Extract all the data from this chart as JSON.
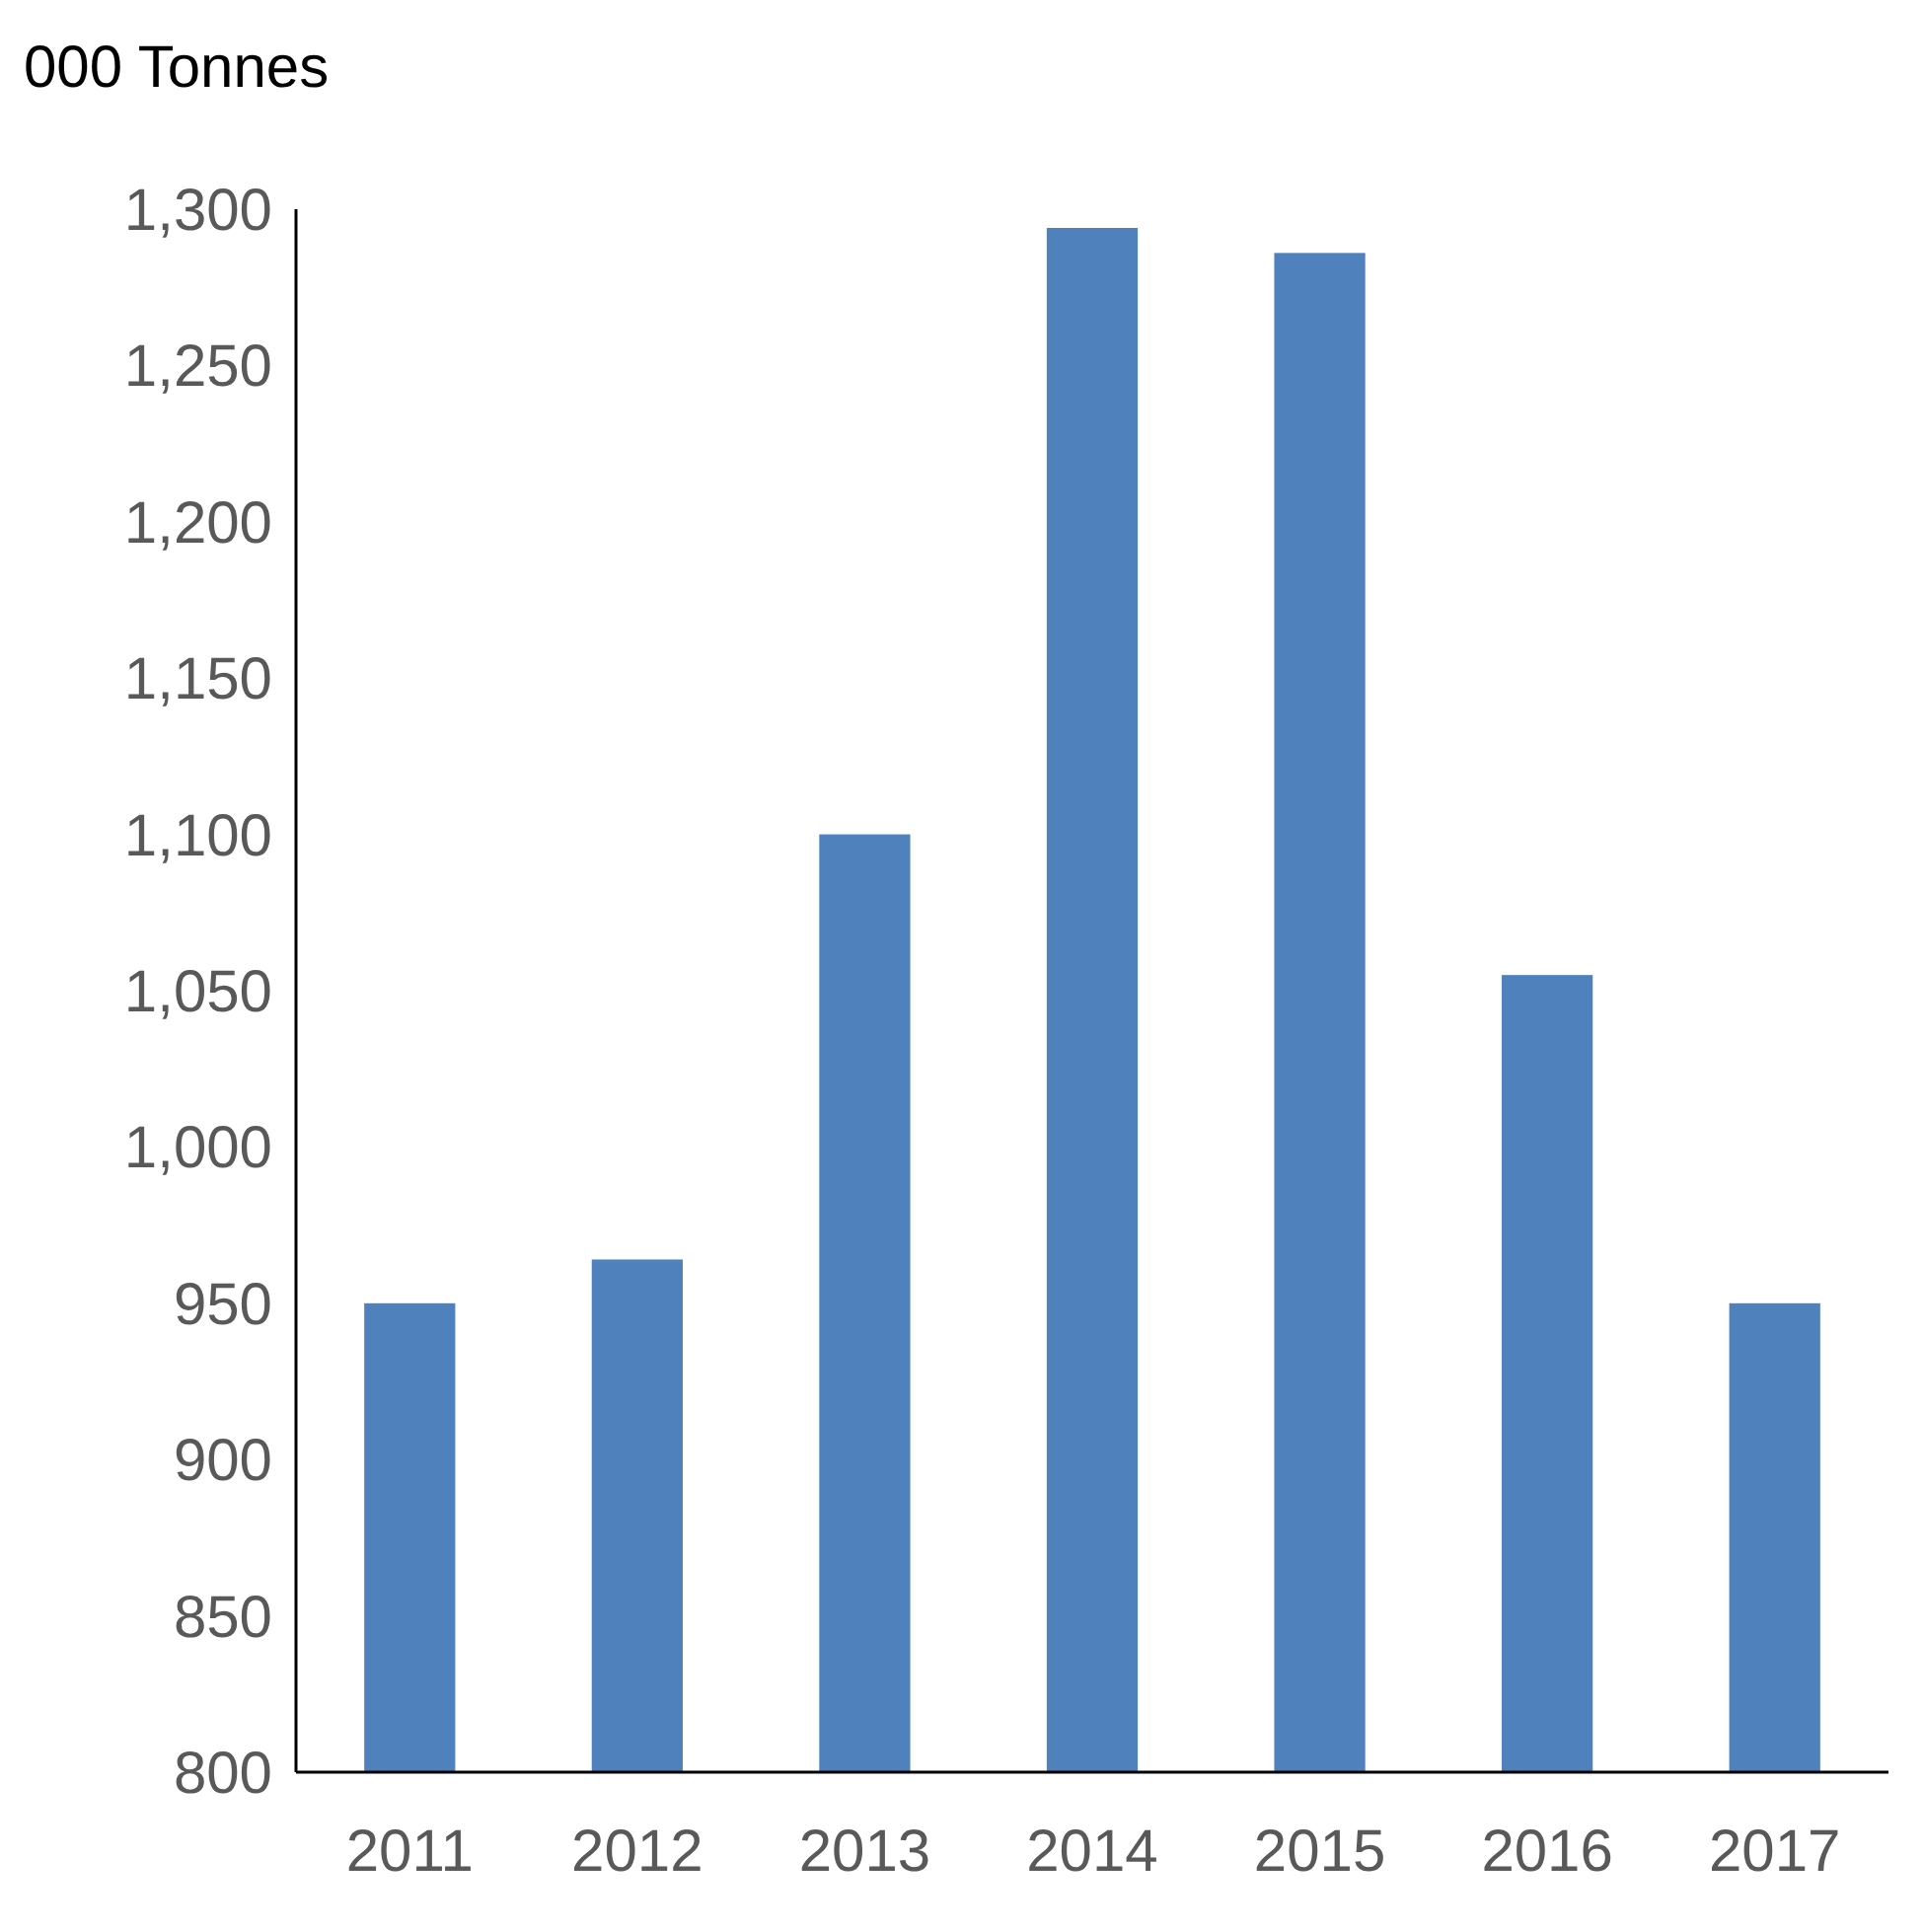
{
  "chart_data": {
    "type": "bar",
    "title": "000 Tonnes",
    "categories": [
      "2011",
      "2012",
      "2013",
      "2014",
      "2015",
      "2016",
      "2017"
    ],
    "values": [
      950,
      964,
      1100,
      1294,
      1286,
      1055,
      950
    ],
    "color": "#4f81bd",
    "ylim": [
      800,
      1300
    ],
    "yticks": [
      {
        "value": 800,
        "label": "800"
      },
      {
        "value": 850,
        "label": "850"
      },
      {
        "value": 900,
        "label": "900"
      },
      {
        "value": 950,
        "label": "950"
      },
      {
        "value": 1000,
        "label": "1,000"
      },
      {
        "value": 1050,
        "label": "1,050"
      },
      {
        "value": 1100,
        "label": "1,100"
      },
      {
        "value": 1150,
        "label": "1,150"
      },
      {
        "value": 1200,
        "label": "1,200"
      },
      {
        "value": 1250,
        "label": "1,250"
      },
      {
        "value": 1300,
        "label": "1,300"
      }
    ],
    "grid": false
  }
}
